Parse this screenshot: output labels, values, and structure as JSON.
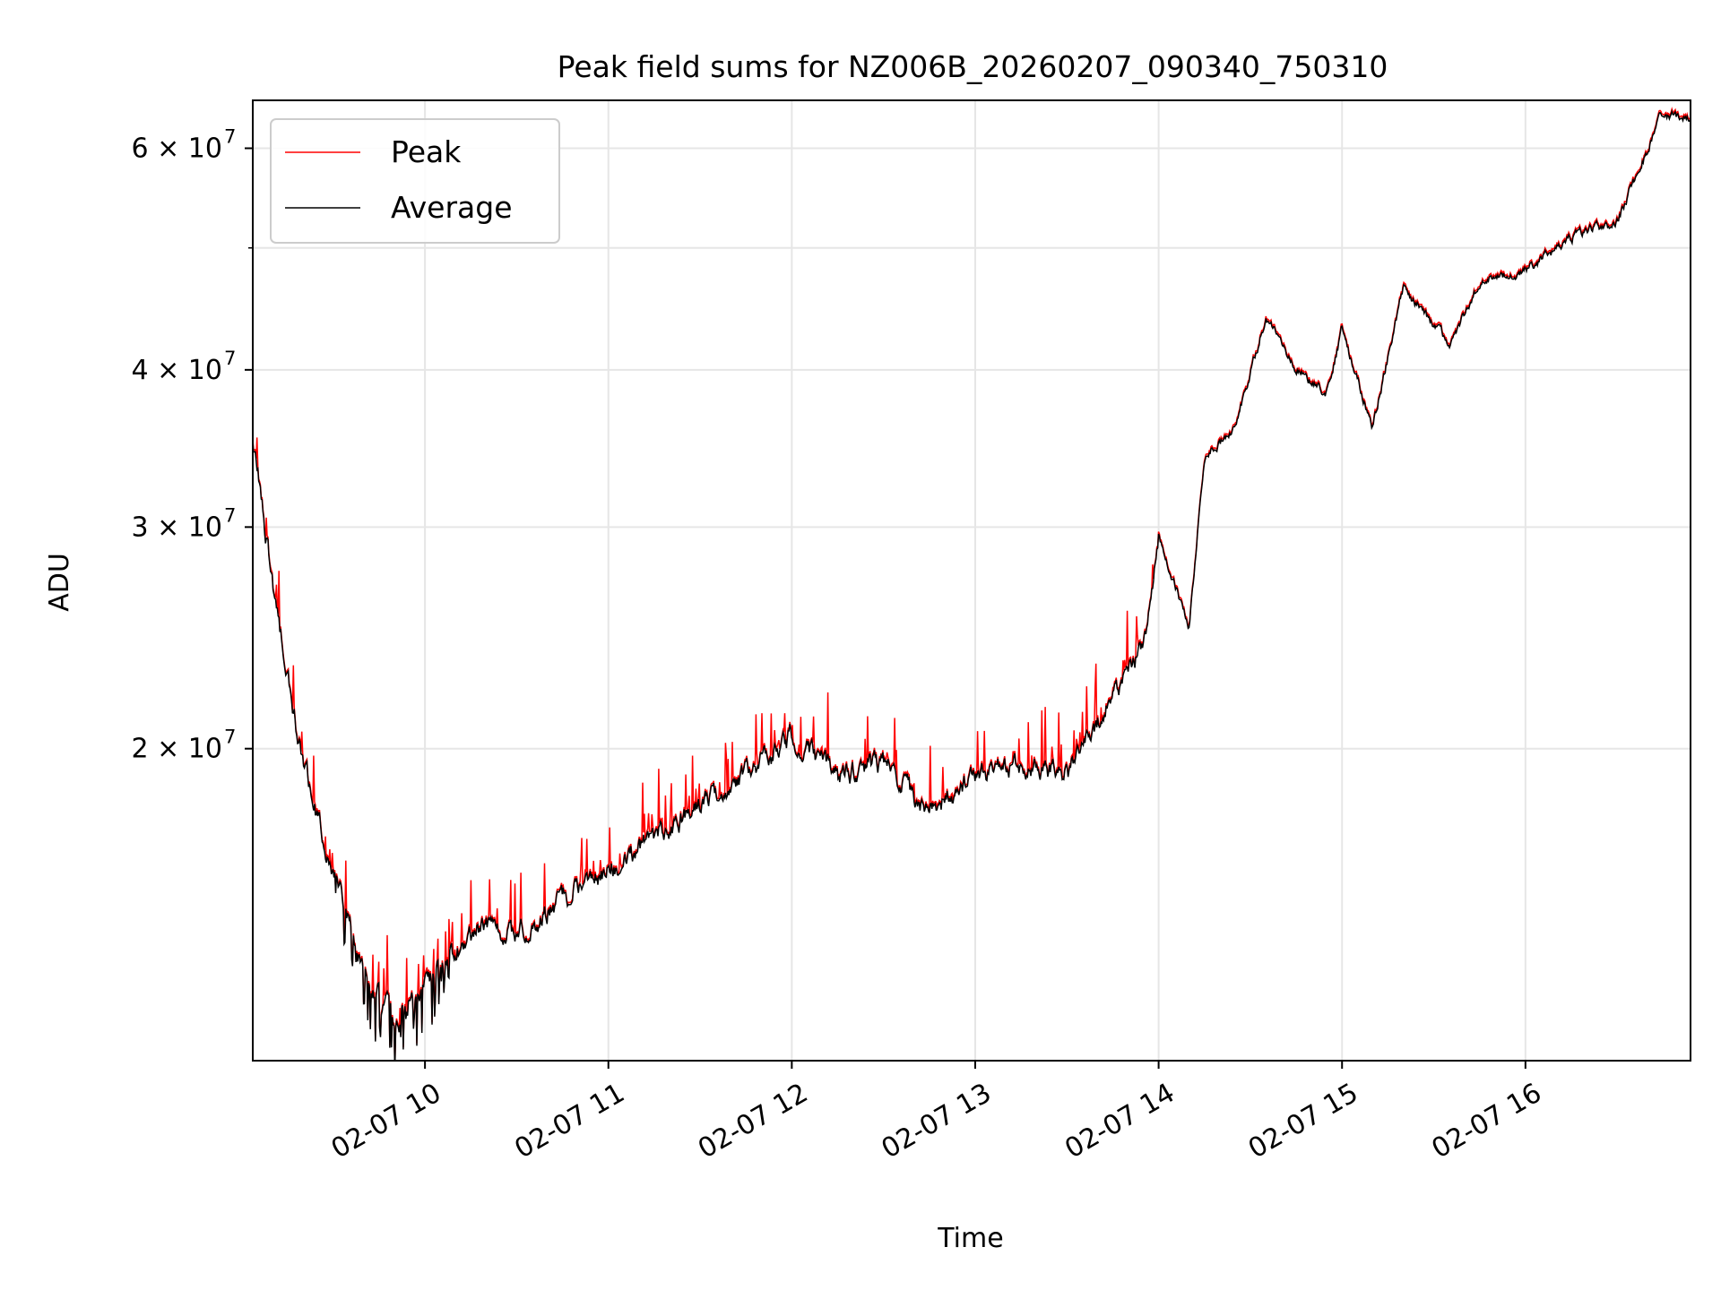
{
  "chart_data": {
    "type": "line",
    "title": "Peak field sums for NZ006B_20260207_090340_750310",
    "xlabel": "Time",
    "ylabel": "ADU",
    "yscale": "log",
    "ylim": [
      11300000,
      65500000
    ],
    "xlim": [
      "2026-02-07 09:03:40",
      "2026-02-07 16:54:00"
    ],
    "y_ticks": [
      {
        "value": 20000000,
        "label": "2 × 10",
        "exp": "7"
      },
      {
        "value": 30000000,
        "label": "3 × 10",
        "exp": "7"
      },
      {
        "value": 40000000,
        "label": "4 × 10",
        "exp": "7"
      },
      {
        "value": 60000000,
        "label": "6 × 10",
        "exp": "7"
      }
    ],
    "y_minor_ticks": [
      50000000
    ],
    "x_ticks": [
      {
        "time": "2026-02-07 10:00",
        "label": "02-07 10"
      },
      {
        "time": "2026-02-07 11:00",
        "label": "02-07 11"
      },
      {
        "time": "2026-02-07 12:00",
        "label": "02-07 12"
      },
      {
        "time": "2026-02-07 13:00",
        "label": "02-07 13"
      },
      {
        "time": "2026-02-07 14:00",
        "label": "02-07 14"
      },
      {
        "time": "2026-02-07 15:00",
        "label": "02-07 15"
      },
      {
        "time": "2026-02-07 16:00",
        "label": "02-07 16"
      }
    ],
    "grid": true,
    "legend_position": "top-left",
    "series": [
      {
        "name": "Peak",
        "color": "#ff0000",
        "noise": "peak"
      },
      {
        "name": "Average",
        "color": "#000000",
        "noise": "average"
      }
    ],
    "trend": {
      "x": [
        "2026-02-07 09:03",
        "2026-02-07 09:10",
        "2026-02-07 09:20",
        "2026-02-07 09:30",
        "2026-02-07 09:40",
        "2026-02-07 09:50",
        "2026-02-07 10:00",
        "2026-02-07 10:10",
        "2026-02-07 10:20",
        "2026-02-07 10:30",
        "2026-02-07 10:45",
        "2026-02-07 11:00",
        "2026-02-07 11:15",
        "2026-02-07 11:30",
        "2026-02-07 11:45",
        "2026-02-07 12:00",
        "2026-02-07 12:15",
        "2026-02-07 12:30",
        "2026-02-07 12:45",
        "2026-02-07 13:00",
        "2026-02-07 13:15",
        "2026-02-07 13:30",
        "2026-02-07 13:45",
        "2026-02-07 13:55",
        "2026-02-07 14:00",
        "2026-02-07 14:10",
        "2026-02-07 14:15",
        "2026-02-07 14:25",
        "2026-02-07 14:35",
        "2026-02-07 14:45",
        "2026-02-07 14:55",
        "2026-02-07 15:00",
        "2026-02-07 15:10",
        "2026-02-07 15:20",
        "2026-02-07 15:35",
        "2026-02-07 15:45",
        "2026-02-07 16:00",
        "2026-02-07 16:15",
        "2026-02-07 16:30",
        "2026-02-07 16:45",
        "2026-02-07 16:54"
      ],
      "y": [
        36500000,
        27000000,
        19500000,
        16000000,
        13200000,
        12200000,
        13000000,
        13800000,
        14500000,
        14200000,
        15200000,
        16000000,
        17000000,
        18000000,
        19000000,
        20500000,
        19000000,
        19500000,
        17800000,
        19000000,
        19500000,
        19000000,
        22000000,
        24000000,
        29500000,
        25000000,
        34000000,
        36000000,
        44000000,
        40000000,
        38500000,
        43000000,
        36000000,
        46500000,
        42000000,
        47000000,
        48000000,
        51000000,
        52500000,
        64000000,
        63000000
      ]
    }
  }
}
